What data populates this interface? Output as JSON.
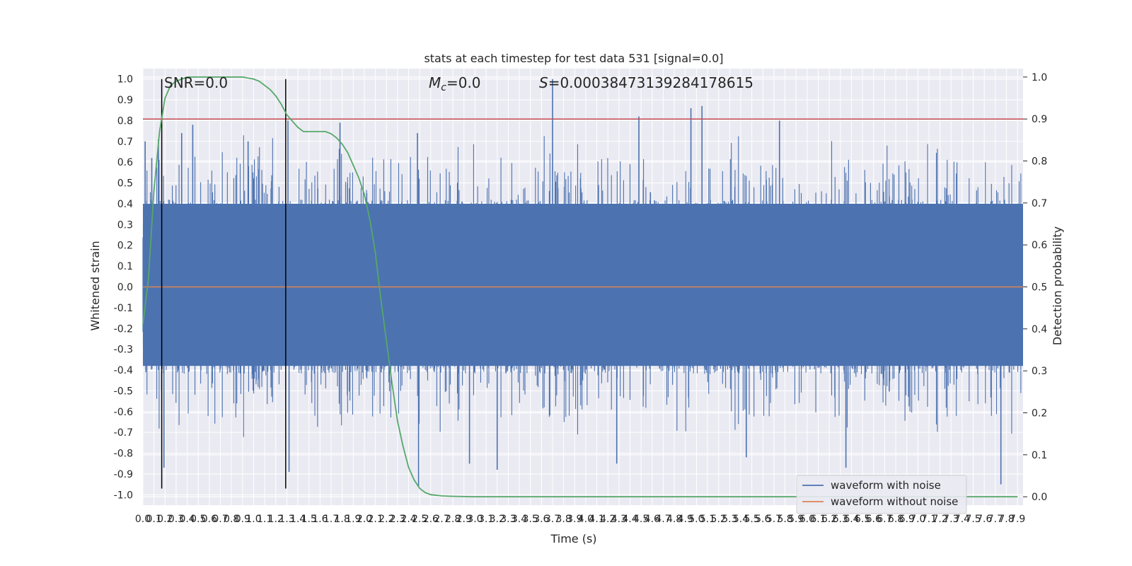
{
  "chart_data": {
    "type": "line",
    "title": "stats at each timestep for test data 531 [signal=0.0]",
    "xlabel": "Time (s)",
    "ylabel": "Whitened strain",
    "y2label": "Detection probability",
    "xlim": [
      0.0,
      7.95
    ],
    "ylim": [
      -1.05,
      1.05
    ],
    "y2lim": [
      -0.02,
      1.02
    ],
    "x_ticks": [
      0.0,
      0.1,
      0.2,
      0.3,
      0.4,
      0.5,
      0.6,
      0.7,
      0.8,
      0.9,
      1.0,
      1.1,
      1.2,
      1.3,
      1.4,
      1.5,
      1.6,
      1.7,
      1.8,
      1.9,
      2.0,
      2.1,
      2.2,
      2.3,
      2.4,
      2.5,
      2.6,
      2.7,
      2.8,
      2.9,
      3.0,
      3.1,
      3.2,
      3.3,
      3.4,
      3.5,
      3.6,
      3.7,
      3.8,
      3.9,
      4.0,
      4.1,
      4.2,
      4.3,
      4.4,
      4.5,
      4.6,
      4.7,
      4.8,
      4.9,
      5.0,
      5.1,
      5.2,
      5.3,
      5.4,
      5.5,
      5.6,
      5.7,
      5.8,
      5.9,
      6.0,
      6.1,
      6.2,
      6.3,
      6.4,
      6.5,
      6.6,
      6.7,
      6.8,
      6.9,
      7.0,
      7.1,
      7.2,
      7.3,
      7.4,
      7.5,
      7.6,
      7.7,
      7.8,
      7.9
    ],
    "y_ticks": [
      "1.0",
      "0.9",
      "0.8",
      "0.7",
      "0.6",
      "0.5",
      "0.4",
      "0.3",
      "0.2",
      "0.1",
      "0.0",
      "-0.1",
      "-0.2",
      "-0.3",
      "-0.4",
      "-0.5",
      "-0.6",
      "-0.7",
      "-0.8",
      "-0.9",
      "-1.0"
    ],
    "y2_ticks": [
      "1.0",
      "0.9",
      "0.8",
      "0.7",
      "0.6",
      "0.5",
      "0.4",
      "0.3",
      "0.2",
      "0.1",
      "0.0"
    ],
    "annotations": {
      "snr": "SNR=0.0",
      "mc": "=0.0",
      "mc_symbol": "M",
      "mc_sub": "c",
      "s": "=0.00038473139284178615",
      "s_symbol": "S"
    },
    "vertical_lines_x": [
      0.17,
      1.29
    ],
    "threshold_y2": 0.9,
    "grid": true,
    "legend_position": "lower-right",
    "series": [
      {
        "name": "waveform with noise",
        "color": "#4c72b0",
        "description_values": "noise band approx ±0.4 with peaks to ±0.9",
        "peaks": [
          {
            "x": 0.02,
            "y": 0.7
          },
          {
            "x": 0.08,
            "y": 0.62
          },
          {
            "x": 0.14,
            "y": 0.71
          },
          {
            "x": 0.19,
            "y": -0.87
          },
          {
            "x": 0.35,
            "y": 0.74
          },
          {
            "x": 0.45,
            "y": 0.78
          },
          {
            "x": 0.95,
            "y": 0.7
          },
          {
            "x": 1.31,
            "y": 0.8
          },
          {
            "x": 1.32,
            "y": -0.89
          },
          {
            "x": 1.78,
            "y": 0.79
          },
          {
            "x": 2.48,
            "y": 0.74
          },
          {
            "x": 2.49,
            "y": -0.96
          },
          {
            "x": 2.95,
            "y": -0.85
          },
          {
            "x": 3.2,
            "y": -0.88
          },
          {
            "x": 3.7,
            "y": 1.0
          },
          {
            "x": 4.28,
            "y": -0.85
          },
          {
            "x": 4.48,
            "y": 0.82
          },
          {
            "x": 4.95,
            "y": 0.86
          },
          {
            "x": 5.05,
            "y": 0.87
          },
          {
            "x": 5.45,
            "y": -0.82
          },
          {
            "x": 5.75,
            "y": 0.8
          },
          {
            "x": 6.35,
            "y": -0.87
          },
          {
            "x": 7.75,
            "y": -0.95
          }
        ]
      },
      {
        "name": "waveform without noise",
        "color": "#dd8452",
        "x": [
          0.0,
          7.95
        ],
        "y": [
          0.0,
          0.0
        ]
      },
      {
        "name": "detection probability",
        "color": "#55a868",
        "axis": "right",
        "x": [
          0.0,
          0.05,
          0.1,
          0.15,
          0.2,
          0.25,
          0.3,
          0.4,
          0.5,
          0.6,
          0.7,
          0.8,
          0.9,
          1.0,
          1.05,
          1.1,
          1.15,
          1.2,
          1.25,
          1.3,
          1.35,
          1.4,
          1.45,
          1.5,
          1.55,
          1.6,
          1.65,
          1.7,
          1.75,
          1.8,
          1.85,
          1.9,
          1.95,
          2.0,
          2.05,
          2.1,
          2.15,
          2.2,
          2.25,
          2.3,
          2.35,
          2.4,
          2.45,
          2.5,
          2.55,
          2.6,
          2.7,
          2.8,
          3.0,
          4.0,
          5.0,
          6.0,
          7.0,
          7.9
        ],
        "y": [
          0.41,
          0.52,
          0.73,
          0.87,
          0.95,
          0.98,
          0.99,
          1.0,
          1.0,
          1.0,
          1.0,
          1.0,
          1.0,
          0.995,
          0.99,
          0.98,
          0.97,
          0.955,
          0.935,
          0.91,
          0.895,
          0.88,
          0.87,
          0.87,
          0.87,
          0.87,
          0.87,
          0.865,
          0.855,
          0.84,
          0.82,
          0.79,
          0.76,
          0.72,
          0.66,
          0.58,
          0.47,
          0.37,
          0.27,
          0.18,
          0.12,
          0.07,
          0.04,
          0.02,
          0.01,
          0.005,
          0.002,
          0.001,
          0.0,
          0.0,
          0.0,
          0.0,
          0.0,
          0.0
        ]
      }
    ]
  },
  "legend": {
    "items": [
      {
        "label": "waveform with noise",
        "color": "#4c72b0"
      },
      {
        "label": "waveform without noise",
        "color": "#dd8452"
      }
    ]
  }
}
